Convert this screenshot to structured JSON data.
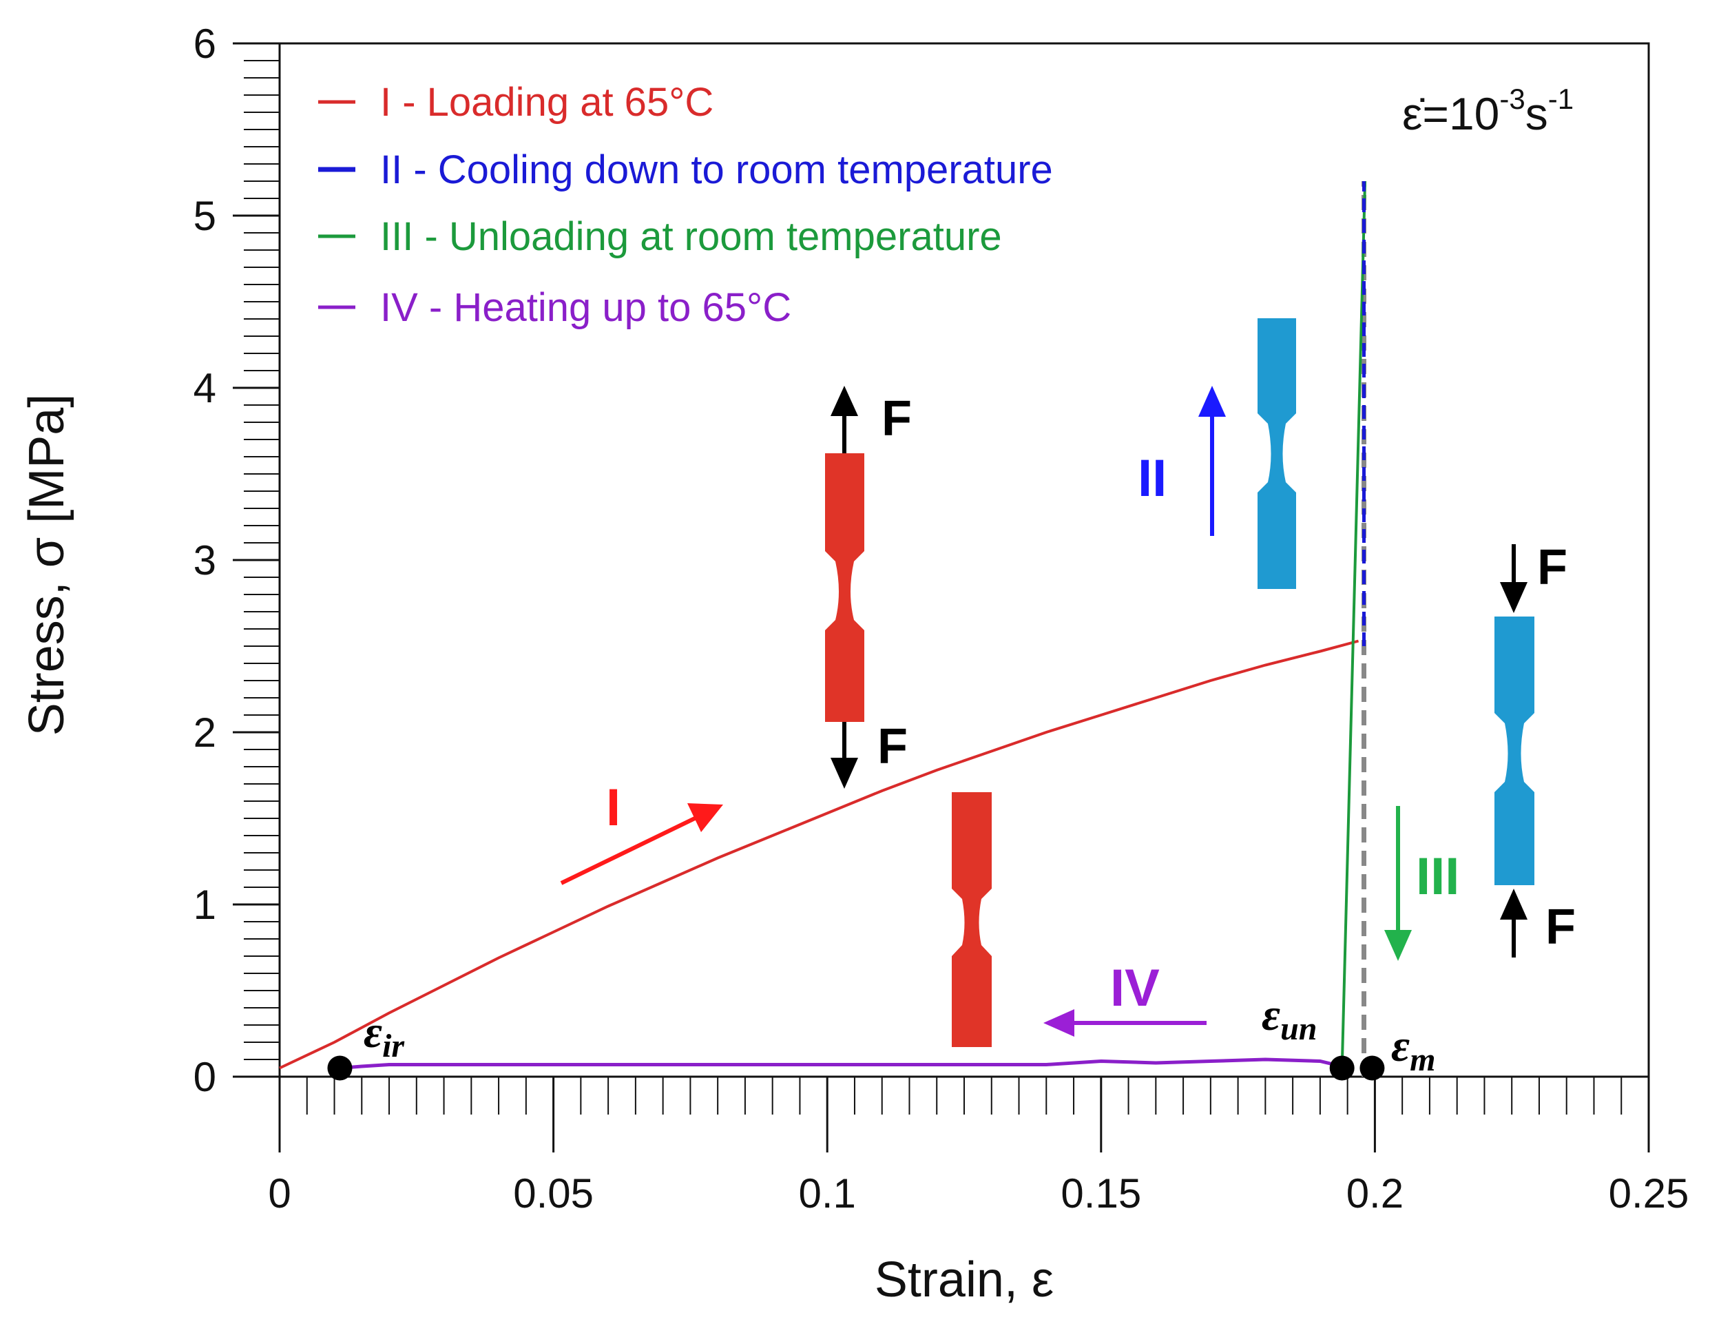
{
  "chart_data": {
    "type": "line",
    "title": "",
    "xlabel": "Strain, ε",
    "ylabel": "Stress, σ  [MPa]",
    "xlim": [
      0,
      0.25
    ],
    "ylim": [
      0,
      6
    ],
    "x_ticks": [
      0,
      0.05,
      0.1,
      0.15,
      0.2,
      0.25
    ],
    "x_tick_labels": [
      "0",
      "0.05",
      "0.1",
      "0.15",
      "0.2",
      "0.25"
    ],
    "y_ticks": [
      0,
      1,
      2,
      3,
      4,
      5,
      6
    ],
    "y_tick_labels": [
      "0",
      "1",
      "2",
      "3",
      "4",
      "5",
      "6"
    ],
    "strain_rate": {
      "base": "ε̇=10",
      "exp1": "-3",
      "mid": "s",
      "exp2": "-1"
    },
    "series": [
      {
        "name": "I - Loading at 65°C",
        "color": "#d92b2b",
        "dash": false,
        "x": [
          0,
          0.01,
          0.02,
          0.03,
          0.04,
          0.05,
          0.06,
          0.07,
          0.08,
          0.09,
          0.1,
          0.11,
          0.12,
          0.13,
          0.14,
          0.15,
          0.16,
          0.17,
          0.18,
          0.19,
          0.197
        ],
        "y": [
          0.05,
          0.2,
          0.37,
          0.53,
          0.69,
          0.84,
          0.99,
          1.13,
          1.27,
          1.4,
          1.53,
          1.66,
          1.78,
          1.89,
          2.0,
          2.1,
          2.2,
          2.3,
          2.39,
          2.47,
          2.53
        ]
      },
      {
        "name": "II - Cooling down to room temperature",
        "color": "#1a1ad6",
        "dash": true,
        "x": [
          0.198,
          0.198
        ],
        "y": [
          2.5,
          5.2
        ]
      },
      {
        "name": "III - Unloading at room temperature",
        "color": "#1c9a3c",
        "dash": false,
        "x": [
          0.1982,
          0.194
        ],
        "y": [
          5.2,
          0.05
        ]
      },
      {
        "name": "IV - Heating up to 65°C",
        "color": "#8a1fc9",
        "dash": false,
        "x": [
          0.194,
          0.19,
          0.18,
          0.17,
          0.16,
          0.15,
          0.14,
          0.13,
          0.12,
          0.1,
          0.08,
          0.06,
          0.04,
          0.03,
          0.02,
          0.015,
          0.011
        ],
        "y": [
          0.06,
          0.09,
          0.1,
          0.09,
          0.08,
          0.09,
          0.07,
          0.07,
          0.07,
          0.07,
          0.07,
          0.07,
          0.07,
          0.07,
          0.07,
          0.06,
          0.05
        ]
      }
    ],
    "reference_line": {
      "x": 0.198,
      "y": [
        0,
        5.2
      ],
      "color": "#888888"
    },
    "points": [
      {
        "label": "ε",
        "sub": "ir",
        "x": 0.011,
        "y": 0.05
      },
      {
        "label": "ε",
        "sub": "un",
        "x": 0.194,
        "y": 0.05
      },
      {
        "label": "ε",
        "sub": "m",
        "x": 0.1995,
        "y": 0.05
      }
    ],
    "phase_labels": [
      {
        "text": "I",
        "color": "#ff1a1a"
      },
      {
        "text": "II",
        "color": "#1a1aff"
      },
      {
        "text": "III",
        "color": "#22b24c"
      },
      {
        "text": "IV",
        "color": "#9b1fd6"
      }
    ],
    "force_label": "F",
    "specimen_colors": {
      "loading": "#e03428",
      "room": "#1f9ad1"
    }
  }
}
